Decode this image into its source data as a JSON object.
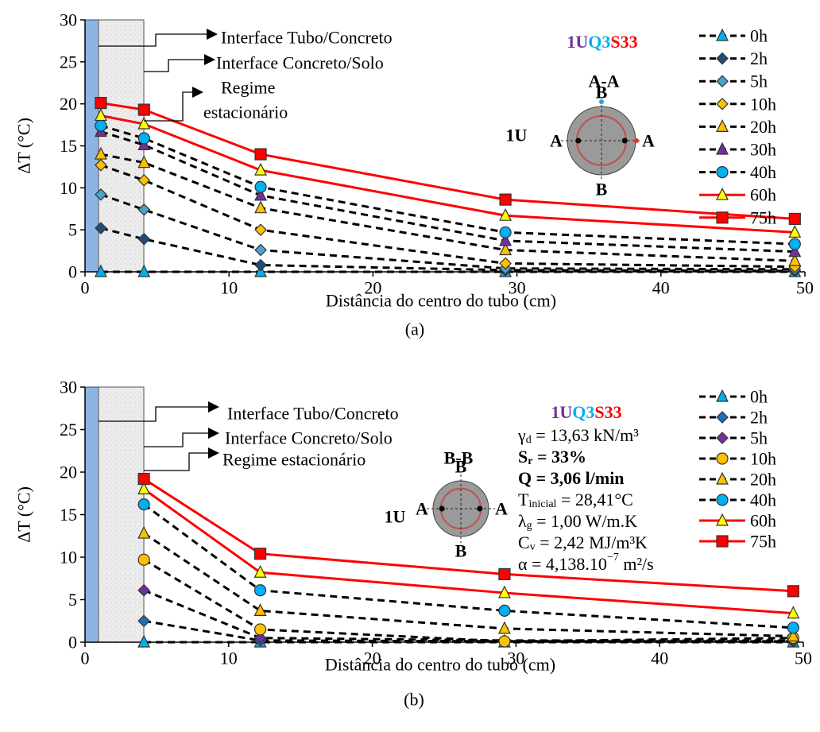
{
  "chart_data": [
    {
      "type": "line",
      "title": [
        "1U",
        "Q3",
        "S33"
      ],
      "section": "A-A",
      "label": "1U",
      "section_marks": [
        "A",
        "A",
        "B",
        "B"
      ],
      "annotations": [
        "Interface Tubo/Concreto",
        "Interface Concreto/Solo",
        "Regime",
        "estacionário"
      ],
      "x_label": "Distância do centro do tubo (cm)",
      "y_label": "ΔT (°C)",
      "caption": "(a)",
      "xlim": [
        0,
        50
      ],
      "xticks": [
        0,
        10,
        20,
        30,
        40,
        50
      ],
      "ylim": [
        0,
        30
      ],
      "yticks": [
        0,
        5,
        10,
        15,
        20,
        25,
        30
      ],
      "legend": "upper right",
      "x": [
        1.1,
        4.1,
        12.2,
        29.2,
        49.3
      ],
      "series": [
        {
          "name": "0h",
          "marker": "triangle",
          "color": "#00b0f0",
          "line_color": "#000000",
          "line_style": "dashed",
          "values": [
            0,
            0,
            0,
            0,
            0
          ]
        },
        {
          "name": "2h",
          "marker": "diamond",
          "color": "#1f4e79",
          "line_color": "#000000",
          "line_style": "dashed",
          "values": [
            5.2,
            3.9,
            0.8,
            0.2,
            0.1
          ]
        },
        {
          "name": "5h",
          "marker": "diamond",
          "color": "#4aa3c8",
          "line_color": "#000000",
          "line_style": "dashed",
          "values": [
            9.2,
            7.4,
            2.6,
            0.4,
            0.3
          ]
        },
        {
          "name": "10h",
          "marker": "diamond",
          "color": "#ffc000",
          "line_color": "#000000",
          "line_style": "dashed",
          "values": [
            12.7,
            10.9,
            5.0,
            1.0,
            0.6
          ]
        },
        {
          "name": "20h",
          "marker": "triangle",
          "color": "#ffc000",
          "line_color": "#000000",
          "line_style": "dashed",
          "values": [
            14.0,
            13.0,
            7.6,
            2.6,
            1.3
          ]
        },
        {
          "name": "30h",
          "marker": "triangle",
          "color": "#7030a0",
          "line_color": "#000000",
          "line_style": "dashed",
          "values": [
            16.7,
            15.1,
            9.1,
            3.7,
            2.4
          ]
        },
        {
          "name": "40h",
          "marker": "circle",
          "color": "#00b0f0",
          "line_color": "#000000",
          "line_style": "dashed",
          "values": [
            17.4,
            15.9,
            10.1,
            4.7,
            3.3
          ]
        },
        {
          "name": "60h",
          "marker": "triangle",
          "color": "#ffff00",
          "line_color": "#ff0000",
          "line_style": "solid",
          "values": [
            18.6,
            17.6,
            12.1,
            6.7,
            4.7
          ]
        },
        {
          "name": "75h",
          "marker": "square",
          "color": "#ff0000",
          "line_color": "#ff0000",
          "line_style": "solid",
          "values": [
            20.1,
            19.3,
            14.0,
            8.6,
            6.3
          ]
        }
      ]
    },
    {
      "type": "line",
      "title": [
        "1U",
        "Q3",
        "S33"
      ],
      "section": "B-B",
      "label": "1U",
      "section_marks": [
        "A",
        "A",
        "B",
        "B"
      ],
      "annotations": [
        "Interface Tubo/Concreto",
        "Interface Concreto/Solo",
        "Regime estacionário"
      ],
      "params": [
        {
          "main": "γ",
          "sub": "d",
          "rest": " = 13,63 kN/m³"
        },
        {
          "main": "S",
          "sub": "r",
          "rest": " = 33%",
          "color": "#ff0000",
          "bold": true
        },
        {
          "main": "Q = 3,06 l/min",
          "color": "#00b0f0",
          "bold": true
        },
        {
          "main": "T",
          "sub": "inicial",
          "rest": " = 28,41°C"
        },
        {
          "main": "λ",
          "sub": "g",
          "rest": " = 1,00 W/m.K"
        },
        {
          "main": "C",
          "sub": "v",
          "rest": " = 2,42 MJ/m³K"
        },
        {
          "main": "α = 4,138.10",
          "sup": "−7",
          "rest": "  m²/s"
        }
      ],
      "x_label": "Distância do centro do tubo (cm)",
      "y_label": "ΔT (°C)",
      "caption": "(b)",
      "xlim": [
        0,
        50
      ],
      "xticks": [
        0,
        10,
        20,
        30,
        40,
        50
      ],
      "ylim": [
        0,
        30
      ],
      "yticks": [
        0,
        5,
        10,
        15,
        20,
        25,
        30
      ],
      "legend": "upper right",
      "x": [
        4.1,
        12.2,
        29.2,
        49.3
      ],
      "series": [
        {
          "name": "0h",
          "marker": "triangle",
          "color": "#00b0f0",
          "line_color": "#000000",
          "line_style": "dashed",
          "values": [
            0,
            0,
            0,
            0
          ]
        },
        {
          "name": "2h",
          "marker": "diamond",
          "color": "#1f6fb5",
          "line_color": "#000000",
          "line_style": "dashed",
          "values": [
            2.5,
            0.2,
            0.1,
            0.1
          ]
        },
        {
          "name": "5h",
          "marker": "diamond",
          "color": "#7030a0",
          "line_color": "#000000",
          "line_style": "dashed",
          "values": [
            6.1,
            0.5,
            0.2,
            0.2
          ]
        },
        {
          "name": "10h",
          "marker": "circle",
          "color": "#ffc000",
          "line_color": "#000000",
          "line_style": "dashed",
          "values": [
            9.7,
            1.5,
            0.1,
            0.5
          ]
        },
        {
          "name": "20h",
          "marker": "triangle",
          "color": "#ffc000",
          "line_color": "#000000",
          "line_style": "dashed",
          "values": [
            12.8,
            3.7,
            1.6,
            0.7
          ]
        },
        {
          "name": "40h",
          "marker": "circle",
          "color": "#00b0f0",
          "line_color": "#000000",
          "line_style": "dashed",
          "values": [
            16.2,
            6.1,
            3.7,
            1.7
          ]
        },
        {
          "name": "60h",
          "marker": "triangle",
          "color": "#ffff00",
          "line_color": "#ff0000",
          "line_style": "solid",
          "values": [
            18.0,
            8.2,
            5.8,
            3.4
          ]
        },
        {
          "name": "75h",
          "marker": "square",
          "color": "#ff0000",
          "line_color": "#ff0000",
          "line_style": "solid",
          "values": [
            19.2,
            10.4,
            8.0,
            6.0
          ]
        }
      ]
    }
  ]
}
